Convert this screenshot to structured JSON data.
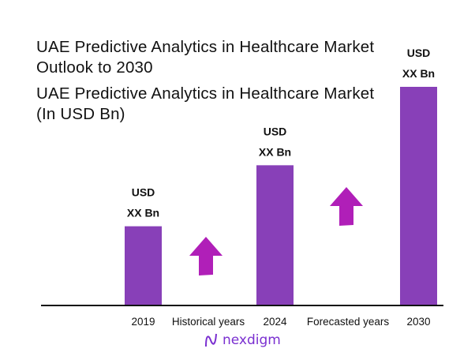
{
  "title": {
    "line1": "UAE Predictive Analytics in Healthcare Market",
    "line2": "Outlook to 2030",
    "line3": "UAE Predictive Analytics in Healthcare Market",
    "line4": "(In USD Bn)"
  },
  "chart_data": {
    "type": "bar",
    "title": "UAE Predictive Analytics in Healthcare Market Outlook to 2030",
    "ylabel": "UAE Predictive Analytics in Healthcare Market (In USD Bn)",
    "categories": [
      "2019",
      "2024",
      "2030"
    ],
    "values": [
      0.36,
      0.64,
      1.0
    ],
    "value_note_visible": false,
    "data_labels": [
      [
        "USD",
        "XX Bn"
      ],
      [
        "USD",
        "XX Bn"
      ],
      [
        "USD",
        "XX Bn"
      ]
    ],
    "annotations": [
      "Historical years",
      "Forecasted years"
    ],
    "grid": false,
    "colors": {
      "bar": "#8840b8",
      "arrow": "#b01fb8",
      "axis": "#111111"
    }
  },
  "logo": {
    "text": "nexdigm",
    "color": "#7a2fd0"
  }
}
